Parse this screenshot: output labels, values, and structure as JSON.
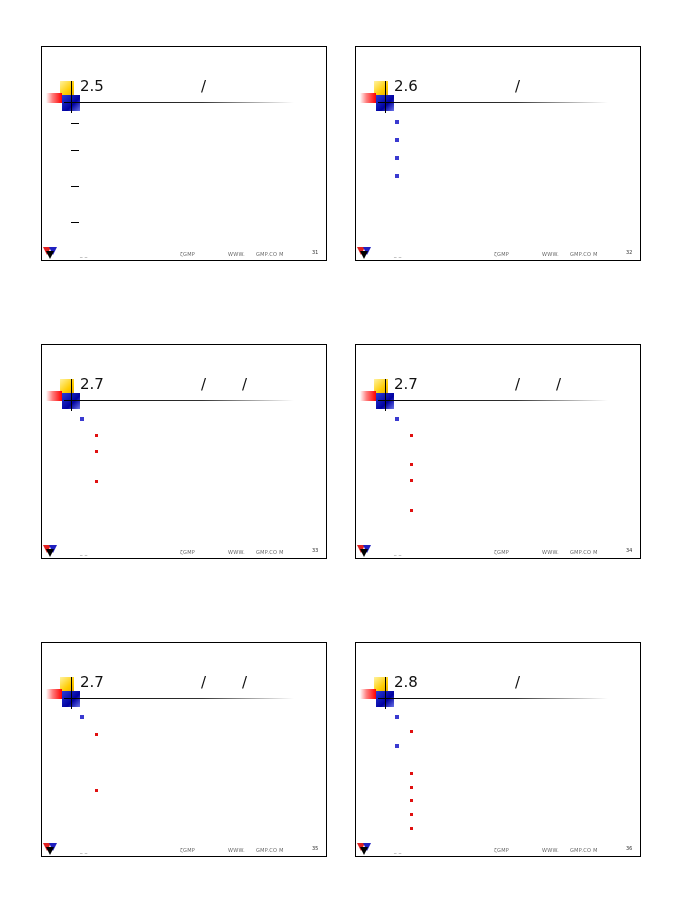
{
  "slides": [
    {
      "title": "2.5",
      "slashes": [
        "/"
      ],
      "footer": {
        "left": "_ _",
        "mid": "ζGMP",
        "site1": "WWW.",
        "site2": "GMP.CO M",
        "page": "31"
      }
    },
    {
      "title": "2.6",
      "slashes": [
        "/"
      ],
      "footer": {
        "left": "_ _",
        "mid": "ζGMP",
        "site1": "WWW.",
        "site2": "GMP.CO M",
        "page": "32"
      }
    },
    {
      "title": "2.7",
      "slashes": [
        "/",
        "/"
      ],
      "footer": {
        "left": "_ _",
        "mid": "ζGMP",
        "site1": "WWW.",
        "site2": "GMP.CO M",
        "page": "33"
      }
    },
    {
      "title": "2.7",
      "slashes": [
        "/",
        "/"
      ],
      "footer": {
        "left": "_ _",
        "mid": "ζGMP",
        "site1": "WWW.",
        "site2": "GMP.CO M",
        "page": "34"
      }
    },
    {
      "title": "2.7",
      "slashes": [
        "/",
        "/"
      ],
      "footer": {
        "left": "_ _",
        "mid": "ζGMP",
        "site1": "WWW.",
        "site2": "GMP.CO M",
        "page": "35"
      }
    },
    {
      "title": "2.8",
      "slashes": [
        "/"
      ],
      "footer": {
        "left": "_ _",
        "mid": "ζGMP",
        "site1": "WWW.",
        "site2": "GMP.CO M",
        "page": "36"
      }
    }
  ]
}
